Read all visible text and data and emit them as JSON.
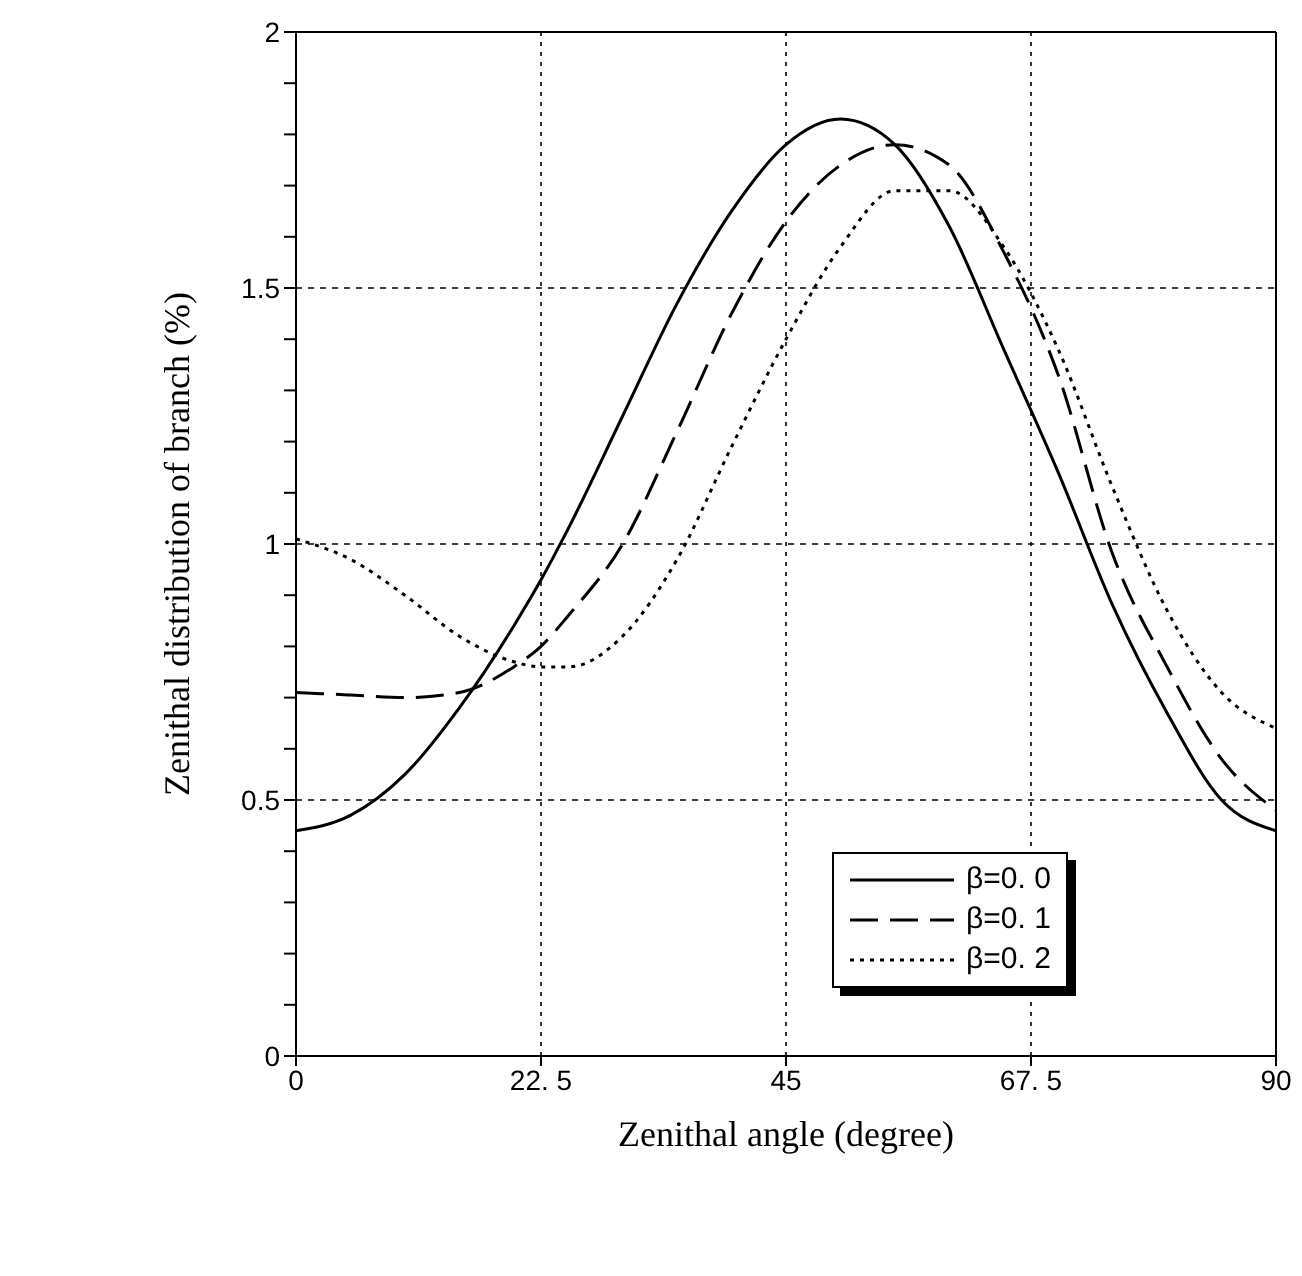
{
  "chart_data": {
    "type": "line",
    "xlabel": "Zenithal angle (degree)",
    "ylabel": "Zenithal distribution of branch (%)",
    "x": [
      0,
      5,
      10,
      15,
      20,
      22.5,
      25,
      30,
      35,
      40,
      45,
      50,
      55,
      60,
      65,
      70,
      75,
      80,
      85,
      90
    ],
    "series": [
      {
        "name": "β=0. 0",
        "color": "#000000",
        "line_style": "solid",
        "values": [
          0.44,
          0.47,
          0.55,
          0.68,
          0.84,
          0.93,
          1.03,
          1.25,
          1.47,
          1.65,
          1.78,
          1.83,
          1.78,
          1.62,
          1.38,
          1.14,
          0.88,
          0.67,
          0.5,
          0.44
        ]
      },
      {
        "name": "β=0. 1",
        "color": "#000000",
        "line_style": "dashed",
        "values": [
          0.71,
          0.705,
          0.7,
          0.71,
          0.76,
          0.8,
          0.86,
          1.0,
          1.22,
          1.45,
          1.63,
          1.74,
          1.78,
          1.74,
          1.57,
          1.33,
          0.98,
          0.76,
          0.58,
          0.48
        ]
      },
      {
        "name": "β=0. 2",
        "color": "#000000",
        "line_style": "dotted",
        "values": [
          1.01,
          0.97,
          0.9,
          0.82,
          0.77,
          0.76,
          0.76,
          0.82,
          0.97,
          1.19,
          1.4,
          1.58,
          1.69,
          1.69,
          1.58,
          1.38,
          1.11,
          0.87,
          0.71,
          0.64
        ]
      }
    ],
    "xlim": [
      0,
      90
    ],
    "xticks": [
      0,
      {
        "value": 22.5,
        "label": "22. 5"
      },
      45,
      {
        "value": 67.5,
        "label": "67. 5"
      },
      90
    ],
    "ylim": [
      0,
      2
    ],
    "yticks": [
      0,
      {
        "value": 0.1,
        "label": null
      },
      {
        "value": 0.2,
        "label": null
      },
      {
        "value": 0.3,
        "label": null
      },
      {
        "value": 0.4,
        "label": null
      },
      0.5,
      {
        "value": 0.6,
        "label": null
      },
      {
        "value": 0.7,
        "label": null
      },
      {
        "value": 0.8,
        "label": null
      },
      {
        "value": 0.9,
        "label": null
      },
      1,
      {
        "value": 1.1,
        "label": null
      },
      {
        "value": 1.2,
        "label": null
      },
      {
        "value": 1.3,
        "label": null
      },
      {
        "value": 1.4,
        "label": null
      },
      1.5,
      {
        "value": 1.6,
        "label": null
      },
      {
        "value": 1.7,
        "label": null
      },
      {
        "value": 1.8,
        "label": null
      },
      {
        "value": 1.9,
        "label": null
      },
      2
    ],
    "grid": true,
    "legend": "bottom right",
    "marker": "none"
  }
}
